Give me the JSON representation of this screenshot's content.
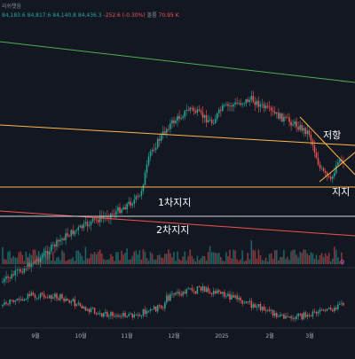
{
  "header": {
    "title_partial": "리쉬챗음",
    "ohlc_text": "84,183.6  84,817.6  84,140.8  84,436.3",
    "change_text": "-252.6 (-0.30%)",
    "volume_label": "볼륨",
    "volume_value": "70.95 K"
  },
  "colors": {
    "background": "#131722",
    "up": "#26a69a",
    "down": "#ef5350",
    "resistance_line": "#ffb84a",
    "support_line": "#ffb84a",
    "top_trend_line": "#4caf50",
    "red_trend_line": "#ef5350",
    "white_line": "#d1d4dc"
  },
  "chart_data": {
    "type": "candlestick",
    "x_tick_labels": [
      "9월",
      "10월",
      "11월",
      "12월",
      "2025",
      "2월",
      "3월"
    ],
    "annotations": {
      "resistance": "저항",
      "support": "지지",
      "first_support": "1차지지",
      "second_support": "2차지지"
    },
    "legend_marker": "⚲",
    "grid": false,
    "panes": [
      "price",
      "volume",
      "oscillator"
    ]
  }
}
